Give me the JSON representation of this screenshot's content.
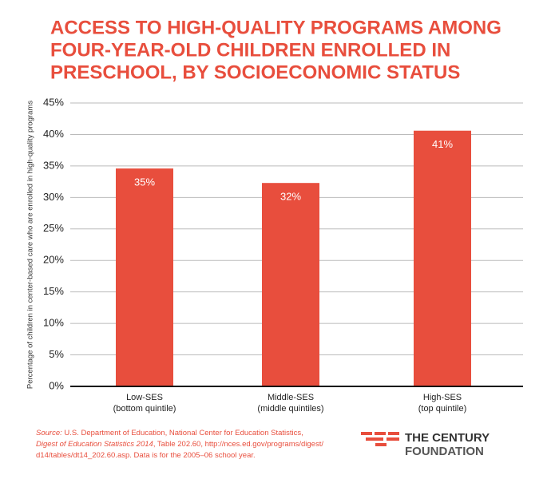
{
  "chart_data": {
    "type": "bar",
    "title": [
      "ACCESS TO HIGH-QUALITY PROGRAMS AMONG",
      "FOUR-YEAR-OLD CHILDREN ENROLLED IN",
      "PRESCHOOL, BY SOCIOECONOMIC STATUS"
    ],
    "ylabel": "Percentage of children in center-based care who are enrolled in high-quality programs",
    "categories": [
      "Low-SES",
      "Middle-SES",
      "High-SES"
    ],
    "category_notes": [
      "(bottom quintile)",
      "(middle quintiles)",
      "(top quintile)"
    ],
    "values": [
      34.6,
      32.3,
      40.6
    ],
    "value_labels": [
      "35%",
      "32%",
      "41%"
    ],
    "color": "#e84e3d",
    "ylim": [
      0,
      45
    ],
    "yticks": [
      {
        "value": 0,
        "label": "0%"
      },
      {
        "value": 5,
        "label": "5%"
      },
      {
        "value": 10,
        "label": "10%"
      },
      {
        "value": 15,
        "label": "15%"
      },
      {
        "value": 20,
        "label": "20%"
      },
      {
        "value": 25,
        "label": "25%"
      },
      {
        "value": 30,
        "label": "30%"
      },
      {
        "value": 35,
        "label": "35%"
      },
      {
        "value": 40,
        "label": "40%"
      },
      {
        "value": 45,
        "label": "45%"
      }
    ],
    "grid": true,
    "source": [
      [
        {
          "text": "Source:",
          "italic": true
        },
        {
          "text": " U.S. Department of Education, National Center for Education Statistics,",
          "italic": false
        }
      ],
      [
        {
          "text": "Digest of Education Statistics 2014",
          "italic": true
        },
        {
          "text": ", Table 202.60, http://nces.ed.gov/programs/digest/",
          "italic": false
        }
      ],
      [
        {
          "text": "d14/tables/dt14_202.60.asp. Data is for the 2005–06 school year.",
          "italic": false
        }
      ]
    ],
    "logo": [
      "THE CENTURY",
      "FOUNDATION"
    ]
  }
}
